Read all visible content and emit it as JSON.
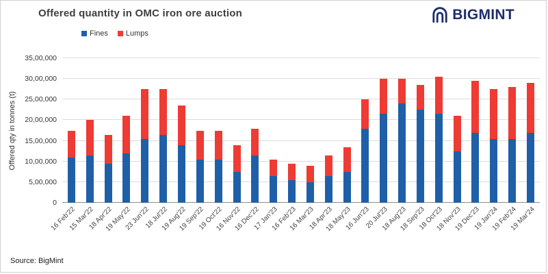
{
  "title": "Offered quantity in OMC iron ore auction",
  "source": "Source: BigMint",
  "brand": {
    "name": "BIGMINT",
    "color": "#1d2d6b"
  },
  "legend": [
    {
      "label": "Fines",
      "color": "#1f5fa8"
    },
    {
      "label": "Lumps",
      "color": "#ee3b33"
    }
  ],
  "chart_data": {
    "type": "bar",
    "stacked": true,
    "title": "Offered quantity in OMC iron ore auction",
    "ylabel": "Offered qty in tonnes (t)",
    "ylim": [
      0,
      3500000
    ],
    "ytick_step": 500000,
    "ytick_labels": [
      "0",
      "5,00,000",
      "10,00,000",
      "15,00,000",
      "20,00,000",
      "25,00,000",
      "30,00,000",
      "35,00,000"
    ],
    "grid": true,
    "legend_position": "top",
    "categories": [
      "16 Feb'22",
      "15 Mar'22",
      "18 Apr'22",
      "19 May'22",
      "23 Jun'22",
      "18 Jul'22",
      "19 Aug'22",
      "19 Sep'22",
      "19 Oct'22",
      "16 Nov'22",
      "16 Dec'22",
      "17 Jan'23",
      "16 Feb'23",
      "16 Mar'23",
      "18 Apr'23",
      "18 May'23",
      "16 Jun'23",
      "20 Jul'23",
      "18 Aug'23",
      "18 Sep'23",
      "18 Oct'23",
      "18 Nov'23",
      "19 Dec'23",
      "19 Jan'24",
      "19 Feb'24",
      "19 Mar'24"
    ],
    "series": [
      {
        "name": "Fines",
        "color": "#1f5fa8",
        "values": [
          1100000,
          1150000,
          950000,
          1200000,
          1550000,
          1650000,
          1400000,
          1050000,
          1050000,
          750000,
          1150000,
          650000,
          550000,
          500000,
          650000,
          750000,
          1800000,
          2150000,
          2400000,
          2250000,
          2150000,
          1250000,
          1700000,
          1550000,
          1550000,
          1700000
        ]
      },
      {
        "name": "Lumps",
        "color": "#ee3b33",
        "values": [
          650000,
          850000,
          700000,
          900000,
          1200000,
          1100000,
          950000,
          700000,
          700000,
          650000,
          650000,
          400000,
          400000,
          400000,
          500000,
          600000,
          700000,
          850000,
          600000,
          600000,
          900000,
          850000,
          1250000,
          1200000,
          1250000,
          1200000
        ]
      }
    ]
  }
}
